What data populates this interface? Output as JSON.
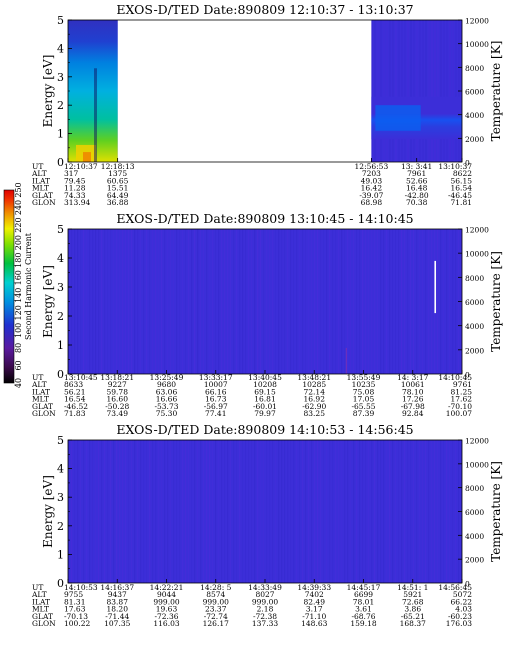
{
  "colorbar": {
    "label": "Second Harmonic Current",
    "ticks": [
      "40",
      "60",
      "80",
      "100",
      "120",
      "140",
      "160",
      "180",
      "200",
      "220",
      "240",
      "250"
    ]
  },
  "chart_data": [
    {
      "type": "heatmap",
      "title": "EXOS-D/TED   Date:890809   12:10:37 - 13:10:37",
      "ylabel": "Energy [eV]",
      "y2label": "Temperature [K]",
      "ylim": [
        0,
        5
      ],
      "y2lim": [
        0,
        12000
      ],
      "yticks": [
        "0",
        "1",
        "2",
        "3",
        "4",
        "5"
      ],
      "y2ticks": [
        "0",
        "2000",
        "4000",
        "6000",
        "8000",
        "10000",
        "12000"
      ],
      "eph_labels": [
        "UT",
        "ALT",
        "ILAT",
        "MLT",
        "GLAT",
        "GLON"
      ],
      "eph_columns": [
        {
          "UT": "12:10:37",
          "ALT": "317",
          "ILAT": "79.45",
          "MLT": "11.28",
          "GLAT": "74.33",
          "GLON": "313.94"
        },
        {
          "UT": "12:18:13",
          "ALT": "1375",
          "ILAT": "60.65",
          "MLT": "15.51",
          "GLAT": "64.49",
          "GLON": "36.88"
        },
        {
          "UT": "12:56:53",
          "ALT": "7203",
          "ILAT": "49.03",
          "MLT": "16.42",
          "GLAT": "-39.07",
          "GLON": "68.98"
        },
        {
          "UT": "13: 3:41",
          "ALT": "7961",
          "ILAT": "52.66",
          "MLT": "16.48",
          "GLAT": "-42.80",
          "GLON": "70.38"
        },
        {
          "UT": "13:10:37",
          "ALT": "8622",
          "ILAT": "56.15",
          "MLT": "16.54",
          "GLAT": "-46.45",
          "GLON": "71.81"
        }
      ],
      "eph_x": [
        0,
        0.126,
        0.77,
        0.885,
        1.0
      ],
      "data_segments": [
        [
          0,
          0.126
        ],
        [
          0.77,
          1.0
        ]
      ],
      "content": "left-segment-high-counts-low-energy; right-segment-blue-band-near-1.5eV"
    },
    {
      "type": "heatmap",
      "title": "EXOS-D/TED   Date:890809   13:10:45 - 14:10:45",
      "ylabel": "Energy [eV]",
      "y2label": "Temperature [K]",
      "ylim": [
        0,
        5
      ],
      "y2lim": [
        0,
        12000
      ],
      "yticks": [
        "0",
        "1",
        "2",
        "3",
        "4",
        "5"
      ],
      "y2ticks": [
        "0",
        "2000",
        "4000",
        "6000",
        "8000",
        "10000",
        "12000"
      ],
      "eph_labels": [
        "UT",
        "ALT",
        "ILAT",
        "MLT",
        "GLAT",
        "GLON"
      ],
      "eph_columns": [
        {
          "UT": "13:10:45",
          "ALT": "8633",
          "ILAT": "56.21",
          "MLT": "16.54",
          "GLAT": "-46.52",
          "GLON": "71.83"
        },
        {
          "UT": "13:18:21",
          "ALT": "9227",
          "ILAT": "59.78",
          "MLT": "16.60",
          "GLAT": "-50.28",
          "GLON": "73.49"
        },
        {
          "UT": "13:25:49",
          "ALT": "9680",
          "ILAT": "63.06",
          "MLT": "16.66",
          "GLAT": "-53.73",
          "GLON": "75.30"
        },
        {
          "UT": "13:33:17",
          "ALT": "10007",
          "ILAT": "66.16",
          "MLT": "16.73",
          "GLAT": "-56.97",
          "GLON": "77.41"
        },
        {
          "UT": "13:40:45",
          "ALT": "10208",
          "ILAT": "69.15",
          "MLT": "16.81",
          "GLAT": "-60.01",
          "GLON": "79.97"
        },
        {
          "UT": "13:48:21",
          "ALT": "10285",
          "ILAT": "72.14",
          "MLT": "16.92",
          "GLAT": "-62.90",
          "GLON": "83.25"
        },
        {
          "UT": "13:55:49",
          "ALT": "10235",
          "ILAT": "75.08",
          "MLT": "17.05",
          "GLAT": "-65.55",
          "GLON": "87.39"
        },
        {
          "UT": "14: 3:17",
          "ALT": "10061",
          "ILAT": "78.10",
          "MLT": "17.26",
          "GLAT": "-67.98",
          "GLON": "92.84"
        },
        {
          "UT": "14:10:45",
          "ALT": "9761",
          "ILAT": "81.25",
          "MLT": "17.62",
          "GLAT": "-70.10",
          "GLON": "100.07"
        }
      ],
      "eph_x": [
        0,
        0.125,
        0.25,
        0.375,
        0.5,
        0.625,
        0.75,
        0.875,
        1.0
      ],
      "data_segments": [
        [
          0,
          1.0
        ]
      ],
      "content": "uniform-blue-background; white-spike-near-14:07"
    },
    {
      "type": "heatmap",
      "title": "EXOS-D/TED   Date:890809   14:10:53 - 14:56:45",
      "ylabel": "Energy [eV]",
      "y2label": "Temperature [K]",
      "ylim": [
        0,
        5
      ],
      "y2lim": [
        0,
        12000
      ],
      "yticks": [
        "0",
        "1",
        "2",
        "3",
        "4",
        "5"
      ],
      "y2ticks": [
        "0",
        "2000",
        "4000",
        "6000",
        "8000",
        "10000",
        "12000"
      ],
      "eph_labels": [
        "UT",
        "ALT",
        "ILAT",
        "MLT",
        "GLAT",
        "GLON"
      ],
      "eph_columns": [
        {
          "UT": "14:10:53",
          "ALT": "9755",
          "ILAT": "81.31",
          "MLT": "17.63",
          "GLAT": "-70.13",
          "GLON": "100.22"
        },
        {
          "UT": "14:16:37",
          "ALT": "9437",
          "ILAT": "83.87",
          "MLT": "18.20",
          "GLAT": "-71.44",
          "GLON": "107.35"
        },
        {
          "UT": "14:22:21",
          "ALT": "9044",
          "ILAT": "999.00",
          "MLT": "19.63",
          "GLAT": "-72.36",
          "GLON": "116.03"
        },
        {
          "UT": "14:28: 5",
          "ALT": "8574",
          "ILAT": "999.00",
          "MLT": "23.37",
          "GLAT": "-72.74",
          "GLON": "126.17"
        },
        {
          "UT": "14:33:49",
          "ALT": "8027",
          "ILAT": "999.00",
          "MLT": "2.18",
          "GLAT": "-72.38",
          "GLON": "137.33"
        },
        {
          "UT": "14:39:33",
          "ALT": "7402",
          "ILAT": "82.49",
          "MLT": "3.17",
          "GLAT": "-71.10",
          "GLON": "148.63"
        },
        {
          "UT": "14:45:17",
          "ALT": "6699",
          "ILAT": "78.01",
          "MLT": "3.61",
          "GLAT": "-68.76",
          "GLON": "159.18"
        },
        {
          "UT": "14:51: 1",
          "ALT": "5921",
          "ILAT": "72.68",
          "MLT": "3.86",
          "GLAT": "-65.21",
          "GLON": "168.37"
        },
        {
          "UT": "14:56:45",
          "ALT": "5072",
          "ILAT": "66.22",
          "MLT": "4.03",
          "GLAT": "-60.23",
          "GLON": "176.03"
        }
      ],
      "eph_x": [
        0,
        0.125,
        0.25,
        0.375,
        0.5,
        0.625,
        0.75,
        0.875,
        1.0
      ],
      "data_segments": [
        [
          0,
          1.0
        ]
      ],
      "content": "uniform-blue-background"
    }
  ]
}
